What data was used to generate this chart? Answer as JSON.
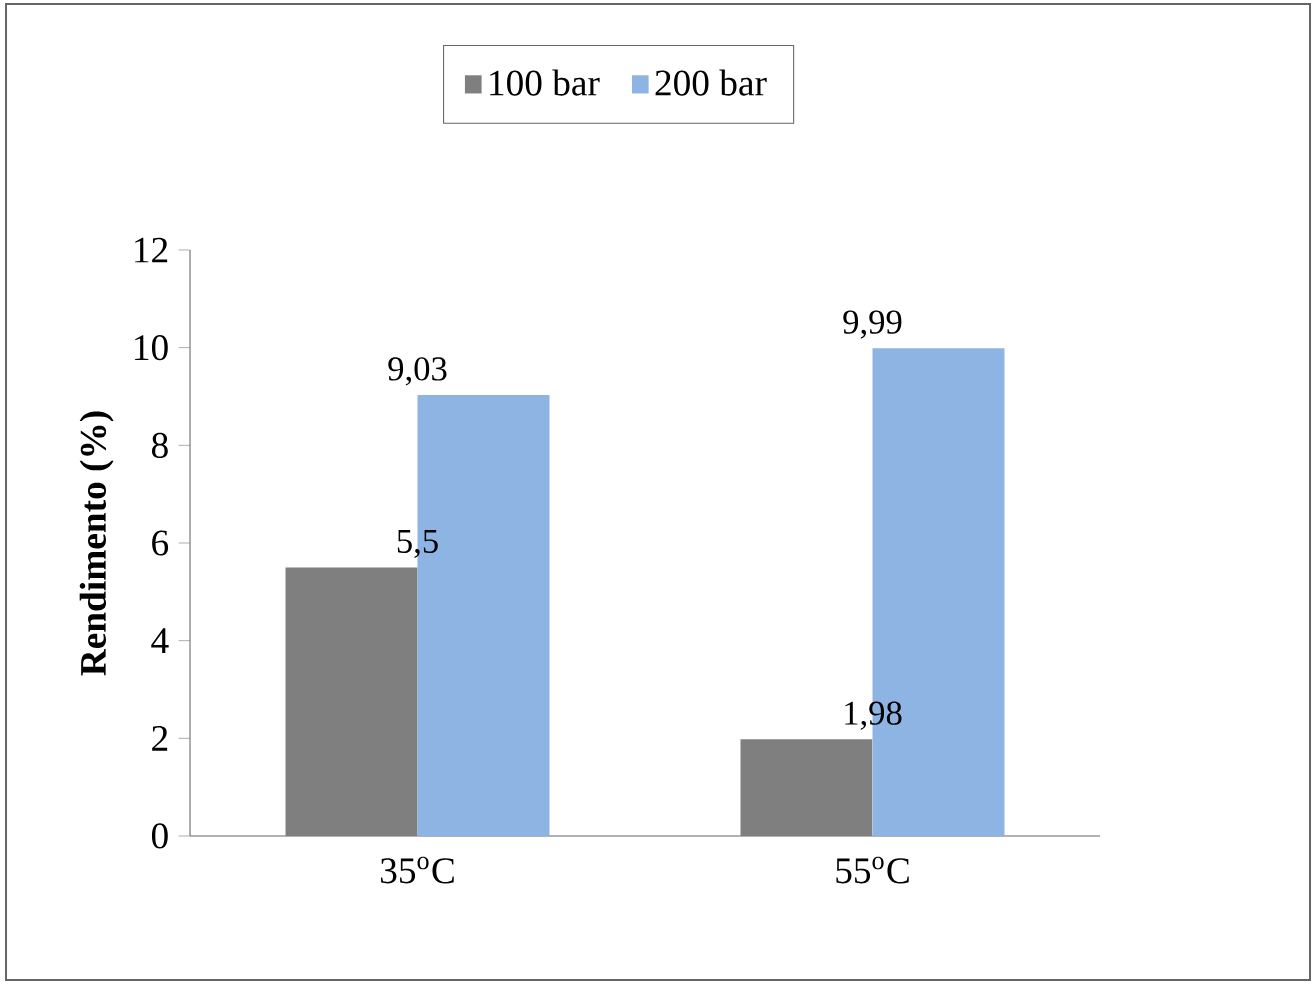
{
  "chart_data": {
    "type": "bar",
    "categories": [
      "35$^{o}$C",
      "55$^{o}$C"
    ],
    "series": [
      {
        "name": "100 bar",
        "color": "#7f7f7f",
        "values": [
          5.5,
          1.98
        ],
        "value_labels": [
          "5,5",
          "1,98"
        ]
      },
      {
        "name": "200 bar",
        "color": "#8eb4e3",
        "values": [
          9.03,
          9.99
        ],
        "value_labels": [
          "9,03",
          "9,99"
        ]
      }
    ],
    "ylabel": "Rendimento (%)",
    "ylim": [
      0,
      12
    ],
    "yticks": [
      0,
      2,
      4,
      6,
      8,
      10,
      12
    ],
    "grid": false,
    "legend": "top"
  }
}
